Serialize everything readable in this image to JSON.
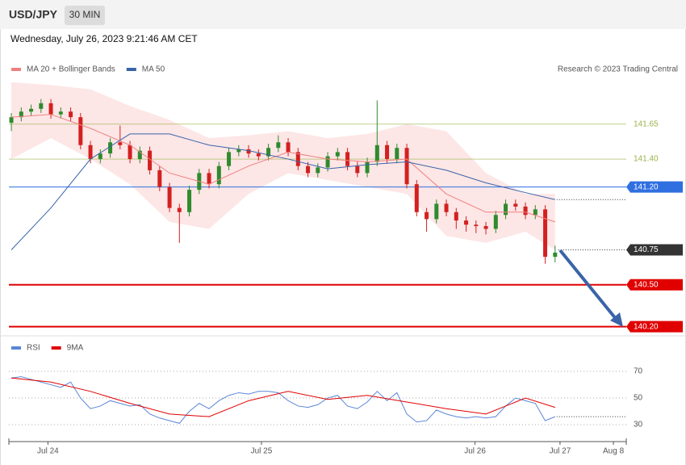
{
  "header": {
    "symbol": "USD/JPY",
    "interval": "30 MIN",
    "timestamp": "Wednesday, July 26, 2023 9:21:46 AM CET"
  },
  "chart_data": [
    {
      "type": "candlestick",
      "credit": "Research © 2023 Trading Central",
      "x": [
        0,
        1,
        2,
        3,
        4,
        5,
        6,
        7,
        8,
        9,
        10,
        11,
        12,
        13,
        14,
        15,
        16,
        17,
        18,
        19,
        20,
        21,
        22,
        23,
        24,
        25,
        26,
        27,
        28,
        29,
        30,
        31,
        32,
        33,
        34,
        35,
        36,
        37,
        38,
        39,
        40,
        41,
        42,
        43,
        44,
        45,
        46,
        47,
        48,
        49,
        50,
        51,
        52,
        53,
        54,
        55
      ],
      "open": [
        141.66,
        141.7,
        141.74,
        141.76,
        141.8,
        141.72,
        141.74,
        141.7,
        141.5,
        141.4,
        141.44,
        141.52,
        141.5,
        141.4,
        141.46,
        141.32,
        141.2,
        141.05,
        141.02,
        141.18,
        141.3,
        141.22,
        141.35,
        141.45,
        141.47,
        141.44,
        141.42,
        141.48,
        141.52,
        141.45,
        141.35,
        141.3,
        141.34,
        141.42,
        141.45,
        141.35,
        141.3,
        141.38,
        141.5,
        141.4,
        141.48,
        141.22,
        141.02,
        140.97,
        141.08,
        141.02,
        140.96,
        140.93,
        140.92,
        140.9,
        141.0,
        141.08,
        141.06,
        141.0,
        141.04,
        140.7
      ],
      "high": [
        141.73,
        141.77,
        141.79,
        141.83,
        141.83,
        141.77,
        141.77,
        141.73,
        141.53,
        141.47,
        141.55,
        141.64,
        141.53,
        141.49,
        141.49,
        141.35,
        141.23,
        141.08,
        141.21,
        141.33,
        141.33,
        141.38,
        141.48,
        141.5,
        141.5,
        141.47,
        141.51,
        141.57,
        141.55,
        141.48,
        141.38,
        141.37,
        141.45,
        141.48,
        141.48,
        141.38,
        141.41,
        141.82,
        141.53,
        141.51,
        141.51,
        141.25,
        141.05,
        141.11,
        141.11,
        141.05,
        140.99,
        140.96,
        140.95,
        141.03,
        141.11,
        141.11,
        141.09,
        141.07,
        141.07,
        140.78
      ],
      "low": [
        141.6,
        141.67,
        141.71,
        141.73,
        141.69,
        141.69,
        141.67,
        141.47,
        141.37,
        141.37,
        141.41,
        141.47,
        141.37,
        141.37,
        141.29,
        141.17,
        141.02,
        140.8,
        140.99,
        141.15,
        141.19,
        141.19,
        141.32,
        141.42,
        141.41,
        141.39,
        141.39,
        141.45,
        141.42,
        141.32,
        141.27,
        141.27,
        141.31,
        141.39,
        141.32,
        141.27,
        141.27,
        141.35,
        141.37,
        141.37,
        141.19,
        140.99,
        140.88,
        140.94,
        140.99,
        140.9,
        140.88,
        140.87,
        140.86,
        140.87,
        140.97,
        141.03,
        140.97,
        140.97,
        140.65,
        140.66
      ],
      "close": [
        141.7,
        141.74,
        141.76,
        141.8,
        141.72,
        141.74,
        141.7,
        141.5,
        141.4,
        141.44,
        141.52,
        141.5,
        141.4,
        141.46,
        141.32,
        141.2,
        141.05,
        141.02,
        141.18,
        141.3,
        141.22,
        141.35,
        141.45,
        141.47,
        141.44,
        141.42,
        141.48,
        141.52,
        141.45,
        141.35,
        141.3,
        141.34,
        141.42,
        141.45,
        141.35,
        141.3,
        141.38,
        141.5,
        141.4,
        141.48,
        141.22,
        141.02,
        140.97,
        141.08,
        141.02,
        140.96,
        140.93,
        140.92,
        140.9,
        141.0,
        141.08,
        141.06,
        141.0,
        141.04,
        140.7,
        140.73
      ],
      "up_color": "#2e8b2e",
      "down_color": "#d42020",
      "series": [
        {
          "name": "MA 20 + Bollinger Bands",
          "color": "#f08080",
          "band_color": "#fde0e0",
          "x": [
            0,
            4,
            8,
            12,
            16,
            20,
            24,
            28,
            32,
            36,
            40,
            44,
            48,
            52,
            55
          ],
          "values": [
            141.7,
            141.72,
            141.62,
            141.5,
            141.3,
            141.22,
            141.35,
            141.45,
            141.4,
            141.38,
            141.4,
            141.15,
            141.02,
            141.02,
            140.95
          ],
          "upper": [
            141.95,
            141.93,
            141.9,
            141.78,
            141.68,
            141.55,
            141.57,
            141.6,
            141.55,
            141.58,
            141.65,
            141.6,
            141.3,
            141.15,
            141.15
          ],
          "lower": [
            141.4,
            141.55,
            141.4,
            141.22,
            140.95,
            140.9,
            141.15,
            141.3,
            141.25,
            141.2,
            141.15,
            140.85,
            140.8,
            140.88,
            140.75
          ]
        },
        {
          "name": "MA 50",
          "color": "#3a64a8",
          "x": [
            0,
            4,
            8,
            12,
            16,
            20,
            24,
            28,
            32,
            36,
            40,
            44,
            48,
            52,
            55
          ],
          "values": [
            140.75,
            141.05,
            141.4,
            141.58,
            141.58,
            141.5,
            141.46,
            141.4,
            141.33,
            141.36,
            141.38,
            141.32,
            141.23,
            141.16,
            141.11
          ]
        }
      ],
      "levels": {
        "values": [
          141.65,
          141.4,
          141.2,
          140.75,
          140.5,
          140.2
        ],
        "value_labels": [
          "141.65",
          "141.40",
          "141.20",
          "140.75",
          "140.50",
          "140.20"
        ],
        "colors": [
          "#9ab34a",
          "#9ab34a",
          "#2f6fe0",
          "#333333",
          "#e00000",
          "#e00000"
        ],
        "styles": [
          "thin",
          "thin",
          "solid",
          "dotted",
          "thick",
          "thick"
        ]
      },
      "xlim": [
        -0.25,
        62.2
      ],
      "ylim": [
        140.14,
        141.99
      ]
    },
    {
      "type": "line",
      "series": [
        {
          "name": "RSI",
          "color": "#5b86d6",
          "x": [
            0,
            1,
            2,
            3,
            4,
            5,
            6,
            7,
            8,
            9,
            10,
            11,
            12,
            13,
            14,
            15,
            16,
            17,
            18,
            19,
            20,
            21,
            22,
            23,
            24,
            25,
            26,
            27,
            28,
            29,
            30,
            31,
            32,
            33,
            34,
            35,
            36,
            37,
            38,
            39,
            40,
            41,
            42,
            43,
            44,
            45,
            46,
            47,
            48,
            49,
            50,
            51,
            52,
            53,
            54,
            55
          ],
          "values": [
            65,
            66,
            64,
            62,
            60,
            58,
            62,
            50,
            42,
            44,
            48,
            46,
            44,
            45,
            38,
            35,
            33,
            31,
            40,
            46,
            42,
            48,
            52,
            54,
            53,
            55,
            55,
            54,
            48,
            44,
            43,
            45,
            50,
            52,
            44,
            42,
            47,
            55,
            48,
            54,
            38,
            32,
            33,
            41,
            38,
            36,
            35,
            36,
            35,
            36,
            44,
            50,
            48,
            46,
            33,
            36
          ]
        },
        {
          "name": "9MA",
          "color": "#e00000",
          "x": [
            0,
            4,
            8,
            12,
            16,
            20,
            24,
            28,
            32,
            36,
            40,
            44,
            48,
            52,
            55
          ],
          "values": [
            65,
            62,
            55,
            46,
            38,
            36,
            48,
            55,
            49,
            52,
            47,
            42,
            38,
            50,
            43
          ]
        }
      ],
      "xlim": [
        -0.25,
        62.2
      ],
      "ylim": [
        18.5,
        95.5
      ],
      "yticks": [
        70,
        50,
        30
      ],
      "xticks": [
        {
          "value": 3.7,
          "label": "Jul 24"
        },
        {
          "value": 25.3,
          "label": "Jul 25"
        },
        {
          "value": 46.9,
          "label": "Jul 26"
        },
        {
          "value": 55.5,
          "label": "Jul 27"
        },
        {
          "value": 60.9,
          "label": "Aug 8"
        }
      ]
    }
  ]
}
